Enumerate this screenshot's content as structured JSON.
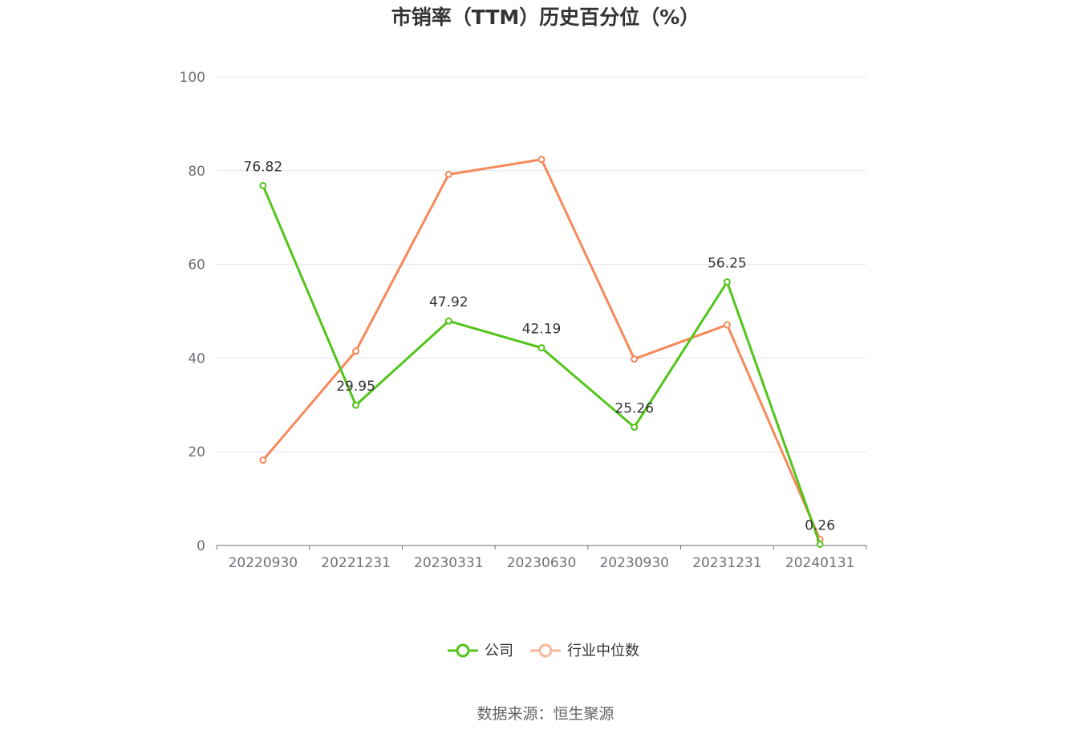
{
  "chart_data": {
    "type": "line",
    "title": "市销率（TTM）历史百分位（%）",
    "categories": [
      "20220930",
      "20221231",
      "20230331",
      "20230630",
      "20230930",
      "20231231",
      "20240131"
    ],
    "ylim": [
      0,
      100
    ],
    "y_ticks": [
      0,
      20,
      40,
      60,
      80,
      100
    ],
    "grid": true,
    "legend_position": "bottom",
    "series": [
      {
        "name": "公司",
        "color": "#52c41a",
        "values": [
          76.82,
          29.95,
          47.92,
          42.19,
          25.26,
          56.25,
          0.26
        ],
        "data_labels": [
          "76.82",
          "29.95",
          "47.92",
          "42.19",
          "25.26",
          "56.25",
          "0.26"
        ]
      },
      {
        "name": "行业中位数",
        "color": "#f5895a",
        "values": [
          18.2,
          41.5,
          79.2,
          82.4,
          39.8,
          47.1,
          1.3
        ]
      }
    ],
    "source": "数据来源：恒生聚源"
  }
}
